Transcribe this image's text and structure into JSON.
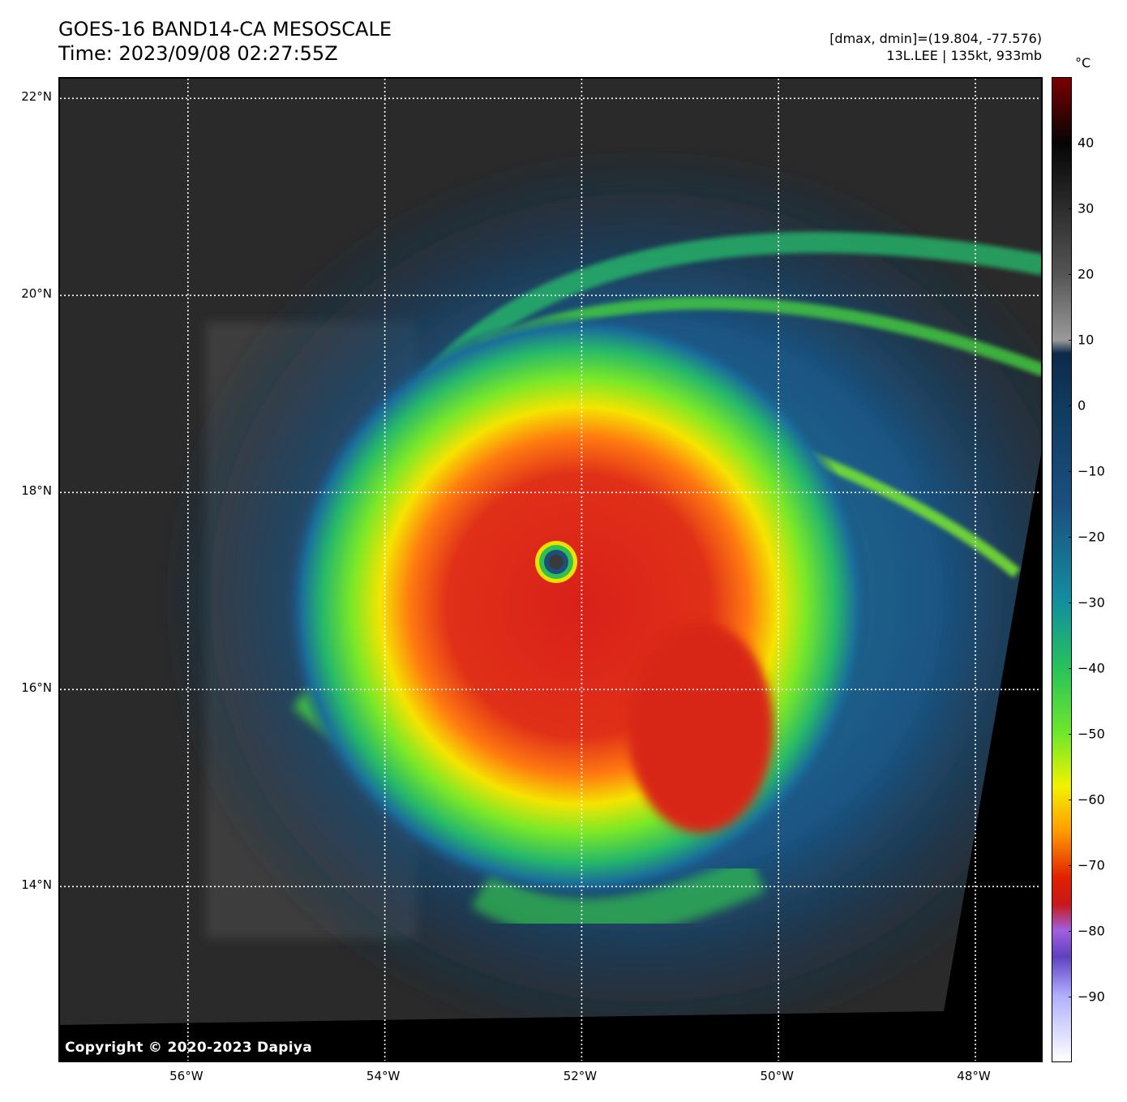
{
  "header": {
    "title": "GOES-16 BAND14-CA MESOSCALE",
    "time": "Time: 2023/09/08 02:27:55Z",
    "dmax_dmin": "[dmax, dmin]=(19.804, -77.576)",
    "storm_info": "13L.LEE | 135kt, 933mb"
  },
  "map": {
    "lat_labels": [
      "22°N",
      "20°N",
      "18°N",
      "16°N",
      "14°N"
    ],
    "lat_values": [
      22,
      20,
      18,
      16,
      14
    ],
    "lon_labels": [
      "56°W",
      "54°W",
      "52°W",
      "50°W",
      "48°W"
    ],
    "lon_values": [
      -56,
      -54,
      -52,
      -50,
      -48
    ],
    "lat_range": [
      12.2,
      22.2
    ],
    "lon_range": [
      -57.3,
      -47.3
    ],
    "storm_center": {
      "lat": 17.2,
      "lon": -52.23
    },
    "copyright": "Copyright © 2020-2023 Dapiya"
  },
  "colorbar": {
    "unit": "°C",
    "labels": [
      "40",
      "30",
      "20",
      "10",
      "0",
      "−10",
      "−20",
      "−30",
      "−40",
      "−50",
      "−60",
      "−70",
      "−80",
      "−90"
    ],
    "values": [
      40,
      30,
      20,
      10,
      0,
      -10,
      -20,
      -30,
      -40,
      -50,
      -60,
      -70,
      -80,
      -90
    ],
    "range": [
      -100,
      50
    ],
    "stops": [
      {
        "t": 50,
        "color": "#7a0000"
      },
      {
        "t": 40,
        "color": "#050505"
      },
      {
        "t": 20,
        "color": "#555555"
      },
      {
        "t": 10,
        "color": "#9a9a9a"
      },
      {
        "t": 8,
        "color": "#0d2a4a"
      },
      {
        "t": 0,
        "color": "#0f3b5e"
      },
      {
        "t": -15,
        "color": "#1a4f80"
      },
      {
        "t": -30,
        "color": "#138fa0"
      },
      {
        "t": -40,
        "color": "#27c25a"
      },
      {
        "t": -50,
        "color": "#6fe82a"
      },
      {
        "t": -58,
        "color": "#f2f200"
      },
      {
        "t": -65,
        "color": "#ff9a00"
      },
      {
        "t": -72,
        "color": "#e02000"
      },
      {
        "t": -76,
        "color": "#c81818"
      },
      {
        "t": -80,
        "color": "#a060e0"
      },
      {
        "t": -84,
        "color": "#6040c0"
      },
      {
        "t": -90,
        "color": "#b0b0ff"
      },
      {
        "t": -100,
        "color": "#ffffff"
      }
    ]
  }
}
